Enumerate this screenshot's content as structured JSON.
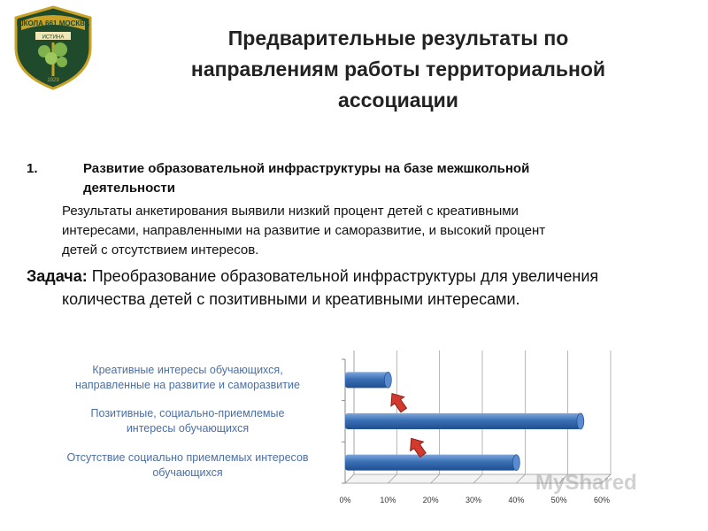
{
  "logo": {
    "top_text": "ШКОЛА 661 МОСКВА",
    "banner_text": "ИСТИНА",
    "year": "1929",
    "icon": "tree-shield-emblem"
  },
  "title": {
    "line1": "Предварительные результаты по",
    "line2": "направлениям работы территориальной",
    "line3": "ассоциации"
  },
  "section": {
    "number": "1.",
    "heading_line1": "Развитие образовательной инфраструктуры на базе межшкольной",
    "heading_line2": "деятельности",
    "results_line1": "Результаты  анкетирования выявили низкий процент детей с креативными",
    "results_line2": "интересами, направленными на развитие и саморазвитие, и высокий процент",
    "results_line3": "детей с отсутствием интересов.",
    "task_label": "Задача:",
    "task_line1": " Преобразование образовательной инфраструктуры для увеличения",
    "task_line2": "количества детей с позитивными и креативными интересами."
  },
  "chart_data": {
    "type": "bar",
    "orientation": "horizontal",
    "categories": [
      "Креативные интересы обучающихся, направленные на развитие и саморазвитие",
      "Позитивные, социально-приемлемые интересы обучающихся",
      "Отсутствие социально приемлемых интересов обучающихся"
    ],
    "category_lines": [
      [
        "Креативные интересы обучающихся,",
        "направленные на развитие и саморазвитие"
      ],
      [
        "Позитивные, социально-приемлемые",
        "интересы обучающихся"
      ],
      [
        "Отсутствие социально приемлемых интересов",
        "обучающихся"
      ]
    ],
    "values": [
      10,
      55,
      40
    ],
    "xticks": [
      "0%",
      "10%",
      "20%",
      "30%",
      "40%",
      "50%",
      "60%"
    ],
    "xlim": [
      0,
      60
    ],
    "grid": true,
    "bar_color": "#3a6fb5",
    "annotations": [
      "increase-arrow",
      "increase-arrow"
    ]
  },
  "watermark": "MyShared"
}
